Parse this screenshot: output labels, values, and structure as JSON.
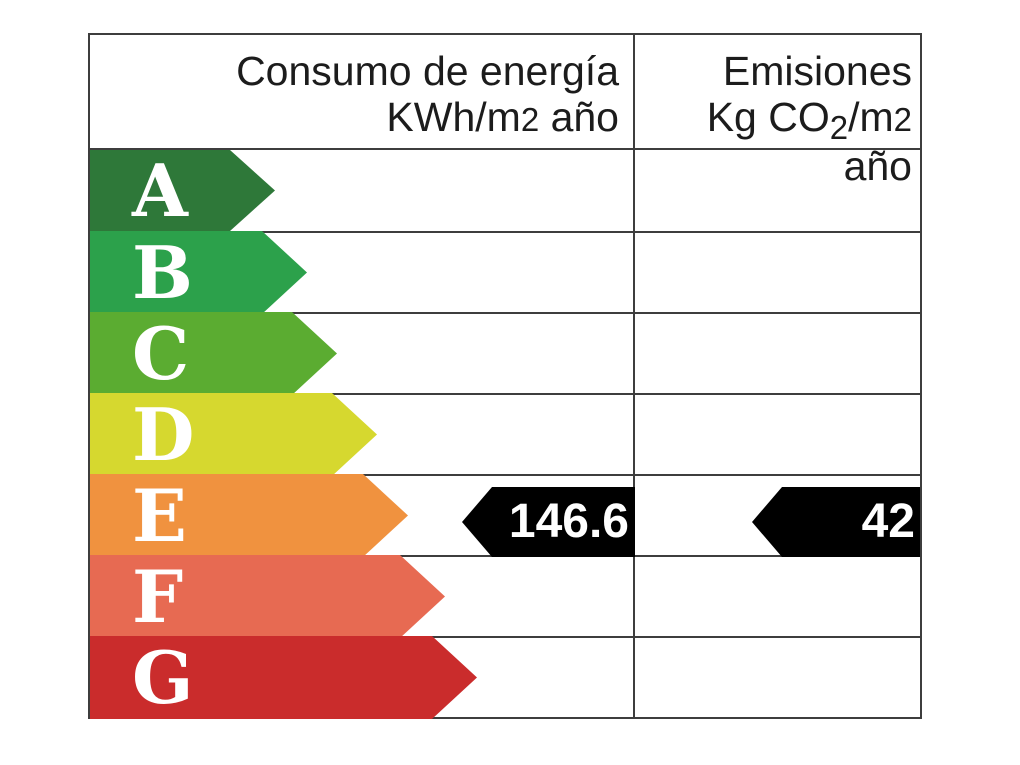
{
  "header": {
    "consumo_line1": "Consumo de energía",
    "consumo_line2_pre": "KWh/m",
    "consumo_line2_sup": "2",
    "consumo_line2_post": " año",
    "emisiones_line1": "Emisiones",
    "emisiones_line2_p1": "Kg CO",
    "emisiones_line2_sub": "2",
    "emisiones_line2_p2": "/m",
    "emisiones_line2_sup": "2",
    "emisiones_line2_p3": " año"
  },
  "ratings": [
    {
      "letter": "A",
      "color": "#2E7839",
      "arrow_width": 185
    },
    {
      "letter": "B",
      "color": "#2CA14B",
      "arrow_width": 217
    },
    {
      "letter": "C",
      "color": "#5BAC31",
      "arrow_width": 247
    },
    {
      "letter": "D",
      "color": "#D6D82F",
      "arrow_width": 287
    },
    {
      "letter": "E",
      "color": "#F0923F",
      "arrow_width": 318
    },
    {
      "letter": "F",
      "color": "#E76A52",
      "arrow_width": 355
    },
    {
      "letter": "G",
      "color": "#CA2C2C",
      "arrow_width": 387
    }
  ],
  "indicators": {
    "consumo_value": "146.6",
    "emisiones_value": "42",
    "indicator_color": "#000000",
    "rated_band": "E"
  },
  "chart_data": {
    "type": "table",
    "title": "Etiqueta de eficiencia energética",
    "columns": [
      "Consumo de energía KWh/m2 año",
      "Emisiones Kg CO2/m2 año"
    ],
    "rating_scale": [
      "A",
      "B",
      "C",
      "D",
      "E",
      "F",
      "G"
    ],
    "rating_colors": [
      "#2E7839",
      "#2CA14B",
      "#5BAC31",
      "#D6D82F",
      "#F0923F",
      "#E76A52",
      "#CA2C2C"
    ],
    "rated_band": "E",
    "consumo_kwh_m2_ano": 146.6,
    "emisiones_kg_co2_m2_ano": 42
  }
}
